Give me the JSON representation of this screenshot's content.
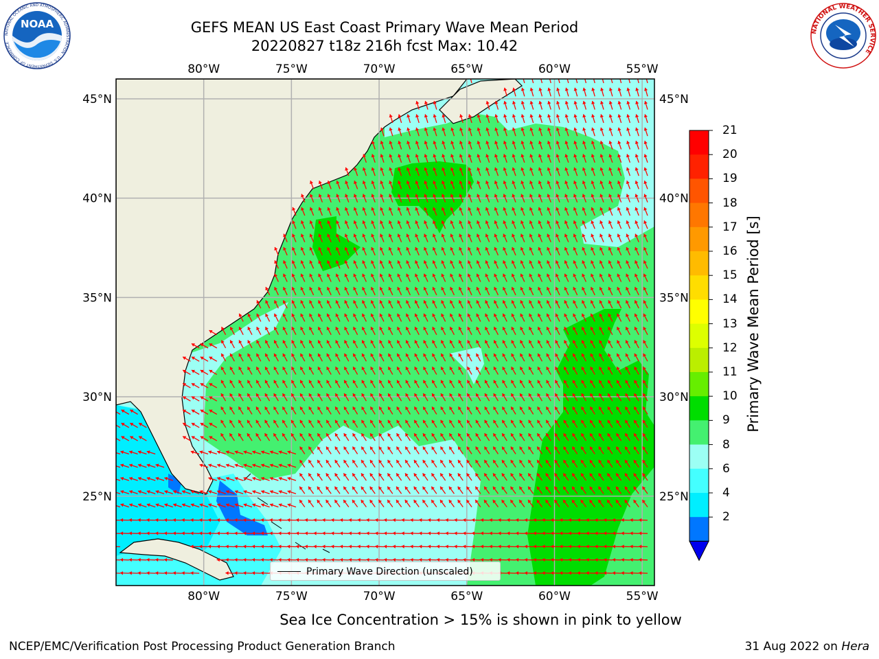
{
  "header": {
    "title_line1": "GEFS MEAN US East Coast Primary Wave Mean Period",
    "title_line2": "20220827 t18z 216h fcst   Max: 10.42"
  },
  "logos": {
    "left": {
      "icon": "noaa-logo",
      "text": "NOAA",
      "ring_text": "NATIONAL OCEANIC AND ATMOSPHERIC ADMINISTRATION · U.S. DEPARTMENT OF COMMERCE"
    },
    "right": {
      "icon": "nws-logo",
      "ring_text": "NATIONAL WEATHER SERVICE"
    }
  },
  "map": {
    "lon_labels": [
      "80°W",
      "75°W",
      "70°W",
      "65°W",
      "60°W",
      "55°W"
    ],
    "lat_labels": [
      "45°N",
      "40°N",
      "35°N",
      "30°N",
      "25°N"
    ],
    "lon_values": [
      -80,
      -75,
      -70,
      -65,
      -60,
      -55
    ],
    "lat_values": [
      45,
      40,
      35,
      30,
      25
    ],
    "extent": {
      "lon_min": -85,
      "lon_max": -54.3,
      "lat_min": 20.5,
      "lat_max": 46
    },
    "land_color": "#efefdf",
    "grid_color": "#b0b0b0",
    "arrow_color": "#ff0000",
    "legend_label": "Primary Wave Direction (unscaled)"
  },
  "colorbar": {
    "label": "Primary Wave Mean Period [s]",
    "ticks": [
      "21",
      "20",
      "19",
      "18",
      "17",
      "16",
      "15",
      "14",
      "13",
      "12",
      "11",
      "10",
      "9",
      "8",
      "6",
      "4",
      "2"
    ],
    "colors": [
      "#ff0000",
      "#ff2200",
      "#ff5500",
      "#ff7700",
      "#ff9900",
      "#ffbb00",
      "#ffdd00",
      "#ffff00",
      "#ddff00",
      "#bbee00",
      "#66ee00",
      "#00dd00",
      "#44f070",
      "#9cfff4",
      "#44ffff",
      "#00eeff",
      "#0077ff"
    ],
    "extend_color": "#0000ee"
  },
  "caption": "Sea Ice Concentration > 15% is shown in pink to yellow",
  "footer": {
    "left": "NCEP/EMC/Verification Post Processing Product Generation Branch",
    "right_date": "31 Aug 2022 on",
    "right_machine": "Hera"
  }
}
